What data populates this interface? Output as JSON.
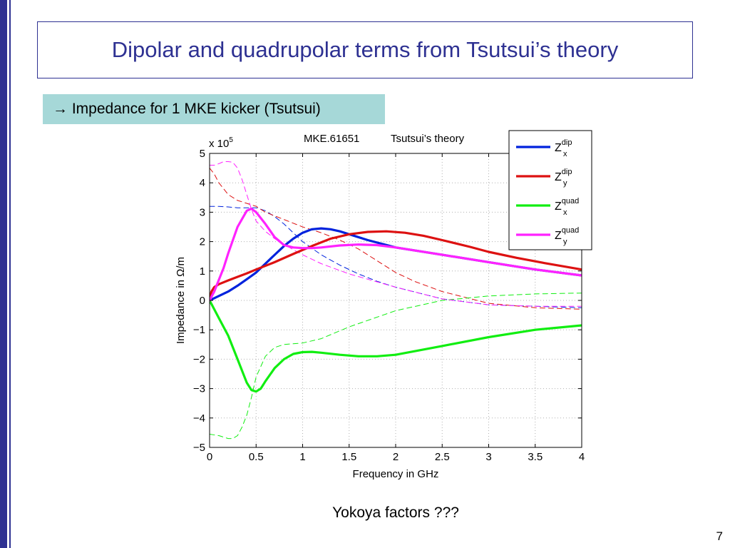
{
  "slide": {
    "title": "Dipolar and quadrupolar terms from Tsutsui’s theory",
    "subtitle": "Impedance for 1 MKE kicker (Tsutsui)",
    "footer": "Yokoya factors ???",
    "page_number": "7",
    "accent_color": "#2e3192",
    "subtitle_bg": "#a6d8d8"
  },
  "chart_data": {
    "type": "line",
    "title_left": "MKE.61651",
    "title_right": "Tsutsui’s theory",
    "xlabel": "Frequency in GHz",
    "ylabel": "Impedance in Ω/m",
    "y_multiplier": "x 10",
    "y_multiplier_exp": "5",
    "xlim": [
      0,
      4
    ],
    "ylim": [
      -5,
      5
    ],
    "x_ticks": [
      "0",
      "0.5",
      "1",
      "1.5",
      "2",
      "2.5",
      "3",
      "3.5",
      "4"
    ],
    "y_ticks": [
      "5",
      "4",
      "3",
      "2",
      "1",
      "0",
      "−1",
      "−2",
      "−3",
      "−4",
      "−5"
    ],
    "grid": true,
    "legend_position": "top-right",
    "series": [
      {
        "name": "Z",
        "sup": "dip",
        "sub": "x",
        "color": "#0022dd",
        "style": "solid",
        "x": [
          0,
          0.1,
          0.2,
          0.3,
          0.4,
          0.5,
          0.6,
          0.7,
          0.8,
          0.9,
          1.0,
          1.1,
          1.2,
          1.3,
          1.4,
          1.5,
          1.7,
          2.0,
          2.5,
          3.0,
          3.5,
          4.0
        ],
        "y": [
          0.0,
          0.15,
          0.3,
          0.5,
          0.72,
          0.95,
          1.25,
          1.55,
          1.85,
          2.1,
          2.3,
          2.42,
          2.45,
          2.42,
          2.35,
          2.25,
          2.05,
          1.8,
          1.55,
          1.3,
          1.05,
          0.85
        ]
      },
      {
        "name": "Z",
        "sup": "dip",
        "sub": "y",
        "color": "#dd1111",
        "style": "solid",
        "x": [
          0,
          0.02,
          0.05,
          0.1,
          0.2,
          0.3,
          0.4,
          0.5,
          0.7,
          0.9,
          1.1,
          1.3,
          1.5,
          1.7,
          1.9,
          2.1,
          2.3,
          2.5,
          2.8,
          3.0,
          3.3,
          3.6,
          4.0
        ],
        "y": [
          0.0,
          0.3,
          0.45,
          0.55,
          0.68,
          0.8,
          0.92,
          1.05,
          1.3,
          1.58,
          1.85,
          2.1,
          2.25,
          2.33,
          2.35,
          2.3,
          2.2,
          2.05,
          1.82,
          1.65,
          1.45,
          1.27,
          1.05
        ]
      },
      {
        "name": "Z",
        "sup": "quad",
        "sub": "x",
        "color": "#11ee11",
        "style": "solid",
        "x": [
          0,
          0.05,
          0.1,
          0.2,
          0.3,
          0.4,
          0.45,
          0.5,
          0.55,
          0.6,
          0.7,
          0.8,
          0.9,
          1.0,
          1.1,
          1.2,
          1.4,
          1.6,
          1.8,
          2.0,
          2.5,
          3.0,
          3.5,
          4.0
        ],
        "y": [
          0.0,
          -0.3,
          -0.6,
          -1.2,
          -2.0,
          -2.8,
          -3.05,
          -3.1,
          -3.0,
          -2.75,
          -2.3,
          -2.0,
          -1.82,
          -1.76,
          -1.75,
          -1.78,
          -1.85,
          -1.9,
          -1.9,
          -1.85,
          -1.55,
          -1.25,
          -1.0,
          -0.85
        ]
      },
      {
        "name": "Z",
        "sup": "quad",
        "sub": "y",
        "color": "#ff22ff",
        "style": "solid",
        "x": [
          0,
          0.05,
          0.1,
          0.15,
          0.2,
          0.3,
          0.4,
          0.45,
          0.5,
          0.6,
          0.7,
          0.8,
          0.9,
          1.0,
          1.1,
          1.2,
          1.4,
          1.6,
          1.8,
          2.0,
          2.5,
          3.0,
          3.5,
          4.0
        ],
        "y": [
          0.0,
          0.3,
          0.7,
          1.1,
          1.6,
          2.5,
          3.05,
          3.12,
          3.0,
          2.6,
          2.15,
          1.88,
          1.8,
          1.78,
          1.78,
          1.8,
          1.87,
          1.9,
          1.88,
          1.8,
          1.55,
          1.3,
          1.05,
          0.85
        ]
      },
      {
        "color": "#0022dd",
        "style": "dashed",
        "x": [
          0,
          0.1,
          0.2,
          0.3,
          0.4,
          0.5,
          0.6,
          0.7,
          0.8,
          0.9,
          1.0,
          1.2,
          1.4,
          1.6,
          1.8,
          2.0,
          2.5,
          3.0,
          3.5,
          4.0
        ],
        "y": [
          3.2,
          3.2,
          3.18,
          3.15,
          3.15,
          3.15,
          3.05,
          2.85,
          2.6,
          2.3,
          2.0,
          1.55,
          1.2,
          0.9,
          0.65,
          0.45,
          0.05,
          -0.15,
          -0.2,
          -0.25
        ]
      },
      {
        "color": "#dd1111",
        "style": "dashed",
        "x": [
          0,
          0.05,
          0.1,
          0.2,
          0.3,
          0.4,
          0.5,
          0.6,
          0.8,
          1.0,
          1.2,
          1.4,
          1.6,
          1.8,
          2.0,
          2.2,
          2.5,
          3.0,
          3.5,
          4.0
        ],
        "y": [
          4.5,
          4.3,
          4.0,
          3.6,
          3.4,
          3.3,
          3.2,
          3.0,
          2.75,
          2.5,
          2.3,
          2.05,
          1.75,
          1.35,
          0.95,
          0.65,
          0.3,
          -0.1,
          -0.25,
          -0.3
        ]
      },
      {
        "color": "#11ee11",
        "style": "dashed",
        "x": [
          0,
          0.1,
          0.2,
          0.25,
          0.3,
          0.35,
          0.4,
          0.45,
          0.5,
          0.6,
          0.7,
          0.8,
          1.0,
          1.2,
          1.5,
          2.0,
          2.5,
          3.0,
          3.5,
          4.0
        ],
        "y": [
          -4.55,
          -4.6,
          -4.7,
          -4.7,
          -4.6,
          -4.3,
          -3.9,
          -3.3,
          -2.6,
          -1.9,
          -1.6,
          -1.5,
          -1.45,
          -1.3,
          -0.9,
          -0.35,
          0.0,
          0.15,
          0.22,
          0.25
        ]
      },
      {
        "color": "#ff22ff",
        "style": "dashed",
        "x": [
          0,
          0.05,
          0.1,
          0.15,
          0.2,
          0.25,
          0.3,
          0.35,
          0.4,
          0.45,
          0.5,
          0.6,
          0.7,
          0.8,
          1.0,
          1.2,
          1.5,
          2.0,
          2.5,
          3.0,
          3.5,
          4.0
        ],
        "y": [
          4.6,
          4.6,
          4.65,
          4.72,
          4.72,
          4.7,
          4.5,
          4.1,
          3.6,
          3.1,
          2.7,
          2.35,
          2.1,
          1.9,
          1.55,
          1.25,
          0.9,
          0.45,
          0.05,
          -0.15,
          -0.2,
          -0.2
        ]
      }
    ]
  }
}
